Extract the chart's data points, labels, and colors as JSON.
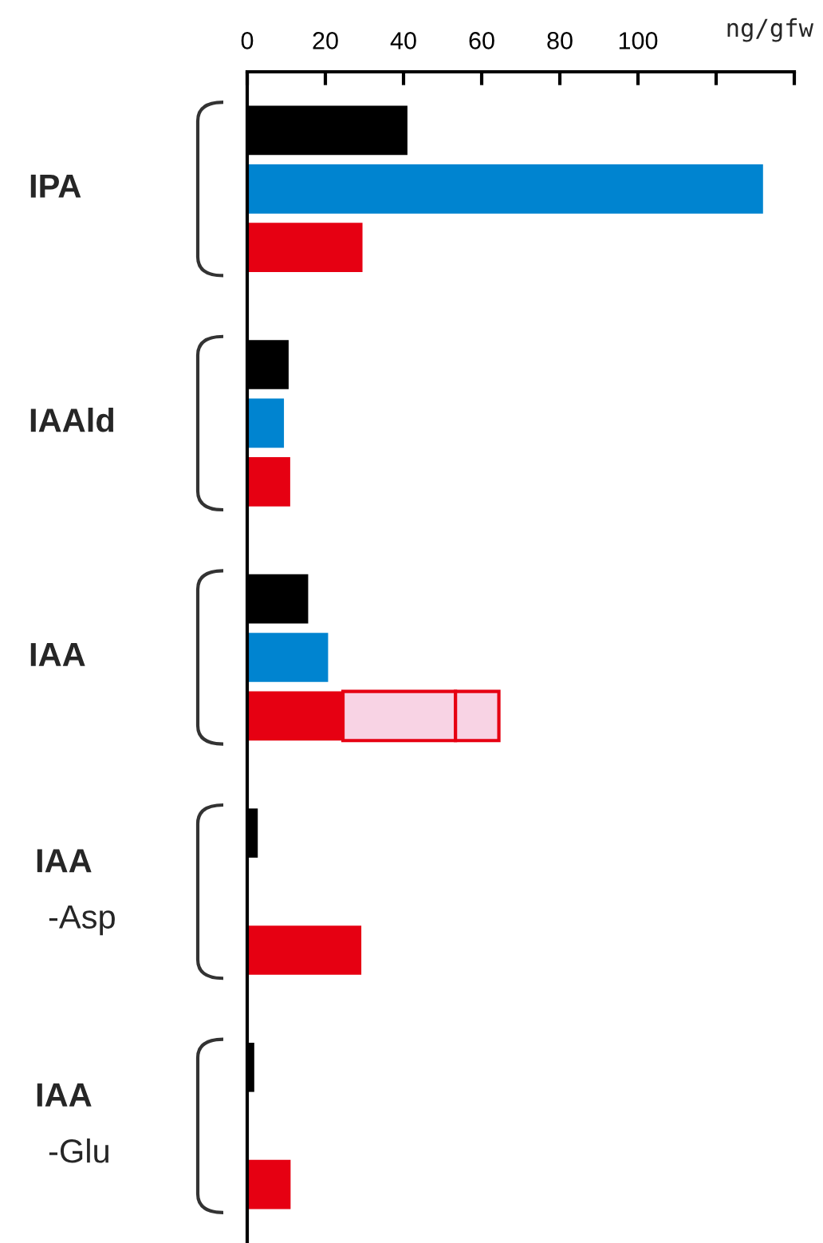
{
  "chart_data": {
    "type": "bar",
    "orientation": "horizontal",
    "xlabel": "ng/gfw",
    "categories": [
      "IPA",
      "IAAld",
      "IAA",
      "IAA\n-Asp",
      "IAA\n-Glu"
    ],
    "series": [
      {
        "color": "#000000",
        "values": [
          41,
          10.6,
          15.6,
          2.7,
          1.8
        ]
      },
      {
        "color": "#0084d0",
        "values": [
          132,
          9.4,
          20.7,
          null,
          null
        ]
      },
      {
        "color": "#e60012",
        "values": [
          29.5,
          11,
          24.5,
          29.2,
          11.1
        ]
      },
      {
        "color": "#f8d3e4",
        "values": [
          null,
          null,
          28.8,
          null,
          null
        ],
        "base": [
          null,
          null,
          24.5,
          null,
          null
        ]
      },
      {
        "color": "#f8d3e4",
        "values": [
          null,
          null,
          11.1,
          null,
          null
        ],
        "base": [
          null,
          null,
          53.3,
          null,
          null
        ]
      }
    ],
    "xlim": [
      0,
      140
    ],
    "xticks": [
      0,
      20,
      40,
      60,
      80,
      100,
      {
        "value": 120,
        "label": null
      },
      {
        "value": 140,
        "label": null
      }
    ]
  }
}
